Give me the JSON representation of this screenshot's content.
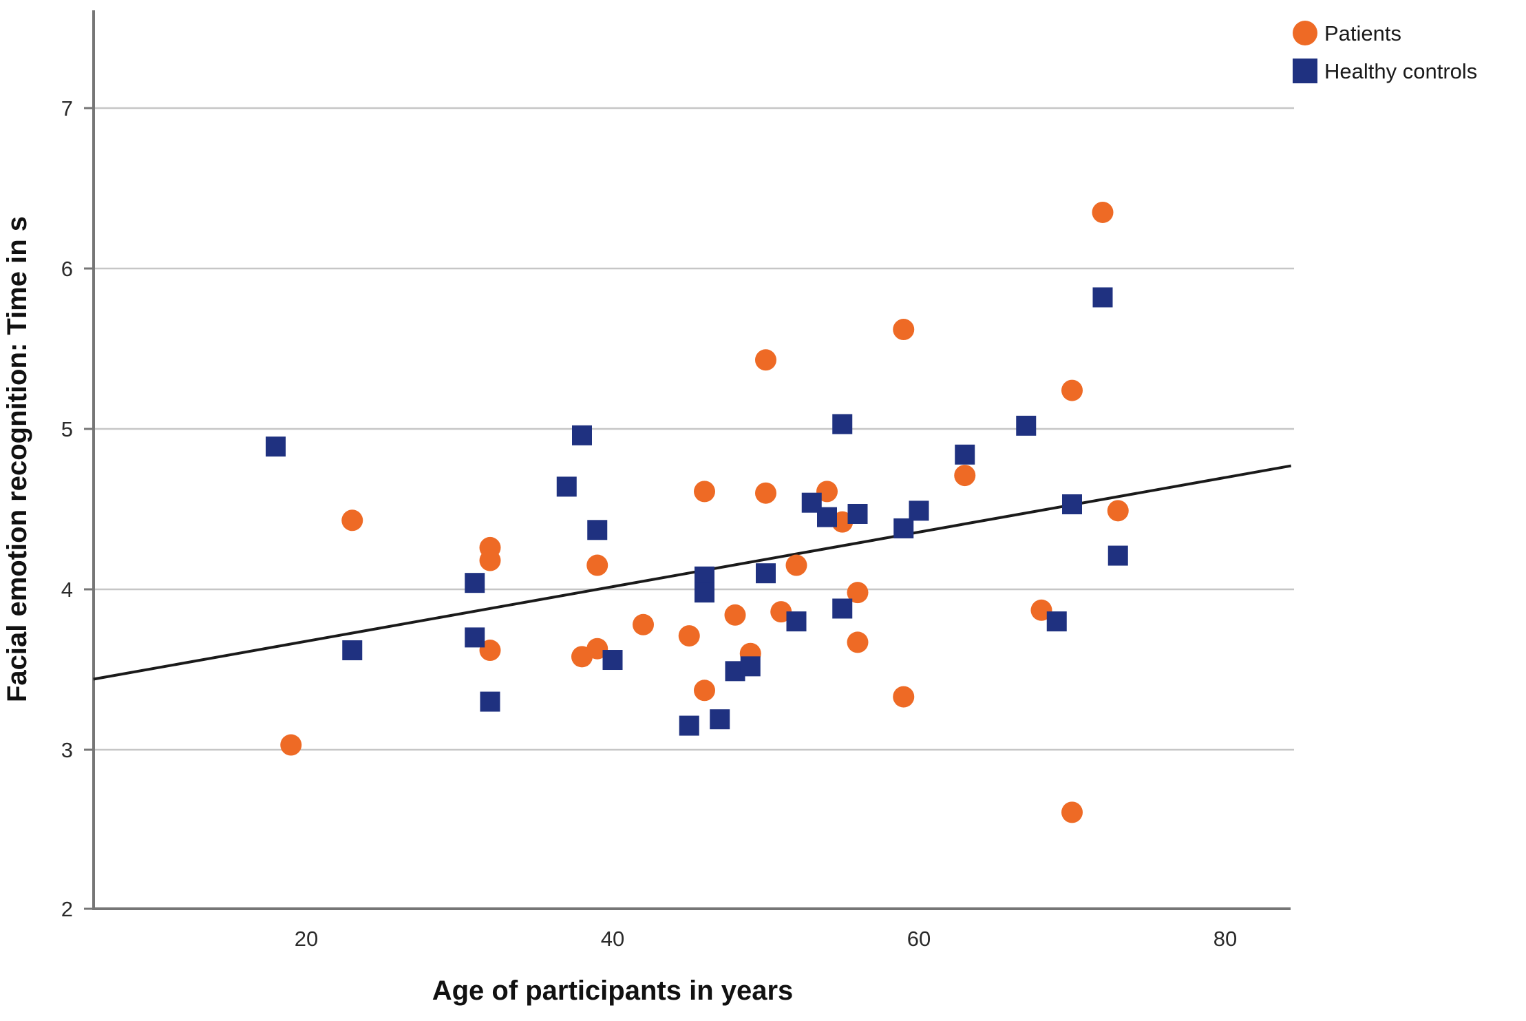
{
  "chart_data": {
    "type": "scatter",
    "title": "",
    "xlabel": "Age of participants in years",
    "ylabel": "Facial emotion recognition: Time in s",
    "xlim": [
      6,
      84.5
    ],
    "ylim": [
      2,
      7.6
    ],
    "x_ticks": [
      "20",
      "40",
      "60",
      "80"
    ],
    "x_tick_values": [
      20,
      40,
      60,
      80
    ],
    "y_ticks": [
      "2",
      "3",
      "4",
      "5",
      "6",
      "7"
    ],
    "y_tick_values": [
      2,
      3,
      4,
      5,
      6,
      7
    ],
    "grid": "horizontal-only",
    "legend_position": "top-right",
    "colors": {
      "patients": "#ee6a25",
      "controls": "#1f3180",
      "trendline": "#1a1a1a",
      "gridline": "#c6c6c6",
      "axis": "#767676"
    },
    "series": [
      {
        "name": "Patients",
        "marker": "circle",
        "color": "#ee6a25",
        "points": [
          [
            19,
            3.03
          ],
          [
            23,
            4.43
          ],
          [
            32,
            4.26
          ],
          [
            32,
            4.18
          ],
          [
            32,
            3.62
          ],
          [
            38,
            3.58
          ],
          [
            39,
            4.15
          ],
          [
            39,
            3.63
          ],
          [
            42,
            3.78
          ],
          [
            45,
            3.71
          ],
          [
            46,
            4.61
          ],
          [
            46,
            3.37
          ],
          [
            48,
            3.84
          ],
          [
            49,
            3.6
          ],
          [
            50,
            5.43
          ],
          [
            50,
            4.6
          ],
          [
            51,
            3.86
          ],
          [
            52,
            4.15
          ],
          [
            54,
            4.61
          ],
          [
            55,
            4.42
          ],
          [
            56,
            3.98
          ],
          [
            56,
            3.67
          ],
          [
            59,
            5.62
          ],
          [
            59,
            3.33
          ],
          [
            63,
            4.71
          ],
          [
            68,
            3.87
          ],
          [
            70,
            5.24
          ],
          [
            70,
            2.61
          ],
          [
            72,
            6.35
          ],
          [
            73,
            4.49
          ]
        ]
      },
      {
        "name": "Healthy controls",
        "marker": "square",
        "color": "#1f3180",
        "points": [
          [
            18,
            4.89
          ],
          [
            23,
            3.62
          ],
          [
            31,
            4.04
          ],
          [
            31,
            3.7
          ],
          [
            32,
            3.3
          ],
          [
            37,
            4.64
          ],
          [
            38,
            4.96
          ],
          [
            39,
            4.37
          ],
          [
            40,
            3.56
          ],
          [
            45,
            3.15
          ],
          [
            46,
            4.08
          ],
          [
            46,
            3.98
          ],
          [
            47,
            3.19
          ],
          [
            48,
            3.49
          ],
          [
            49,
            3.52
          ],
          [
            50,
            4.1
          ],
          [
            52,
            3.8
          ],
          [
            53,
            4.54
          ],
          [
            54,
            4.45
          ],
          [
            55,
            5.03
          ],
          [
            55,
            3.88
          ],
          [
            56,
            4.47
          ],
          [
            59,
            4.38
          ],
          [
            60,
            4.49
          ],
          [
            63,
            4.84
          ],
          [
            67,
            5.02
          ],
          [
            69,
            3.8
          ],
          [
            70,
            4.53
          ],
          [
            72,
            5.82
          ],
          [
            73,
            4.21
          ]
        ]
      }
    ],
    "trendline": {
      "x1": 6.1,
      "y1": 3.44,
      "x2": 84.3,
      "y2": 4.77
    }
  }
}
